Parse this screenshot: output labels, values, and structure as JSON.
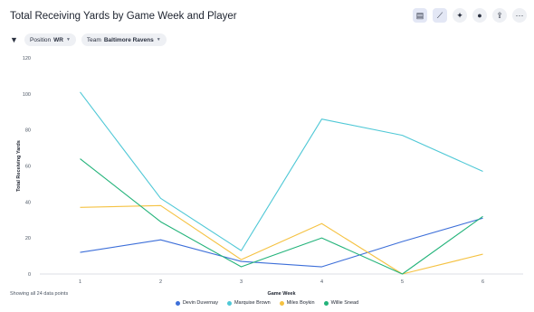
{
  "header": {
    "title": "Total Receiving Yards by Game Week and Player"
  },
  "toolbar": {
    "buttons": [
      {
        "name": "table-view-icon",
        "glyph": "▤"
      },
      {
        "name": "line-chart-icon",
        "glyph": "⟋"
      },
      {
        "name": "pin-icon",
        "glyph": "✦"
      },
      {
        "name": "lightbulb-icon",
        "glyph": "●"
      },
      {
        "name": "share-icon",
        "glyph": "⇪"
      },
      {
        "name": "more-icon",
        "glyph": "···"
      }
    ]
  },
  "filters": [
    {
      "key": "Position",
      "value": "WR"
    },
    {
      "key": "Team",
      "value": "Baltimore Ravens"
    }
  ],
  "footnote": "Showing all 24 data points",
  "chart_data": {
    "type": "line",
    "xlabel": "Game Week",
    "ylabel": "Total Receiving Yards",
    "ylim": [
      0,
      120
    ],
    "yticks": [
      0,
      20,
      40,
      60,
      80,
      100,
      120
    ],
    "x": [
      1,
      2,
      3,
      4,
      5,
      6
    ],
    "grid": false,
    "legend": "bottom",
    "series": [
      {
        "name": "Devin Duvernay",
        "color": "#3d6fd9",
        "values": [
          12,
          19,
          7,
          4,
          18,
          31
        ]
      },
      {
        "name": "Marquise Brown",
        "color": "#4fc8d6",
        "values": [
          101,
          42,
          13,
          86,
          77,
          57
        ]
      },
      {
        "name": "Miles Boykin",
        "color": "#f5c242",
        "values": [
          37,
          38,
          8,
          28,
          0,
          11
        ]
      },
      {
        "name": "Willie Snead",
        "color": "#23b37a",
        "values": [
          64,
          29,
          4,
          20,
          0,
          32
        ]
      }
    ]
  }
}
